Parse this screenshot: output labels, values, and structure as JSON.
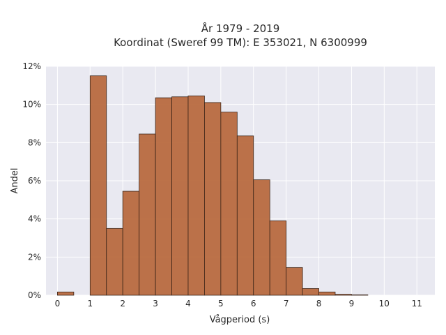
{
  "chart_data": {
    "type": "bar",
    "title_line1": "År 1979 - 2019",
    "title_line2": "Koordinat (Sweref 99 TM): E 353021, N 6300999",
    "xlabel": "Vågperiod (s)",
    "ylabel": "Andel",
    "x_ticks": [
      "0",
      "1",
      "2",
      "3",
      "4",
      "5",
      "6",
      "7",
      "8",
      "9",
      "10",
      "11"
    ],
    "y_ticks": [
      "0%",
      "2%",
      "4%",
      "6%",
      "8%",
      "10%",
      "12%"
    ],
    "xlim": [
      -0.35,
      11.55
    ],
    "ylim": [
      0,
      12
    ],
    "bin_width": 0.5,
    "grid": true,
    "bar_color": "#b86a3f",
    "bar_edge_color": "#3a2418",
    "plot_bg": "#e9e9f1",
    "bins": [
      {
        "x": 0.0,
        "value": 0.17
      },
      {
        "x": 0.5,
        "value": 0.0
      },
      {
        "x": 1.0,
        "value": 11.5
      },
      {
        "x": 1.5,
        "value": 3.5
      },
      {
        "x": 2.0,
        "value": 5.45
      },
      {
        "x": 2.5,
        "value": 8.45
      },
      {
        "x": 3.0,
        "value": 10.35
      },
      {
        "x": 3.5,
        "value": 10.4
      },
      {
        "x": 4.0,
        "value": 10.45
      },
      {
        "x": 4.5,
        "value": 10.1
      },
      {
        "x": 5.0,
        "value": 9.6
      },
      {
        "x": 5.5,
        "value": 8.35
      },
      {
        "x": 6.0,
        "value": 6.05
      },
      {
        "x": 6.5,
        "value": 3.9
      },
      {
        "x": 7.0,
        "value": 1.45
      },
      {
        "x": 7.5,
        "value": 0.35
      },
      {
        "x": 8.0,
        "value": 0.17
      },
      {
        "x": 8.5,
        "value": 0.05
      },
      {
        "x": 9.0,
        "value": 0.02
      }
    ]
  }
}
